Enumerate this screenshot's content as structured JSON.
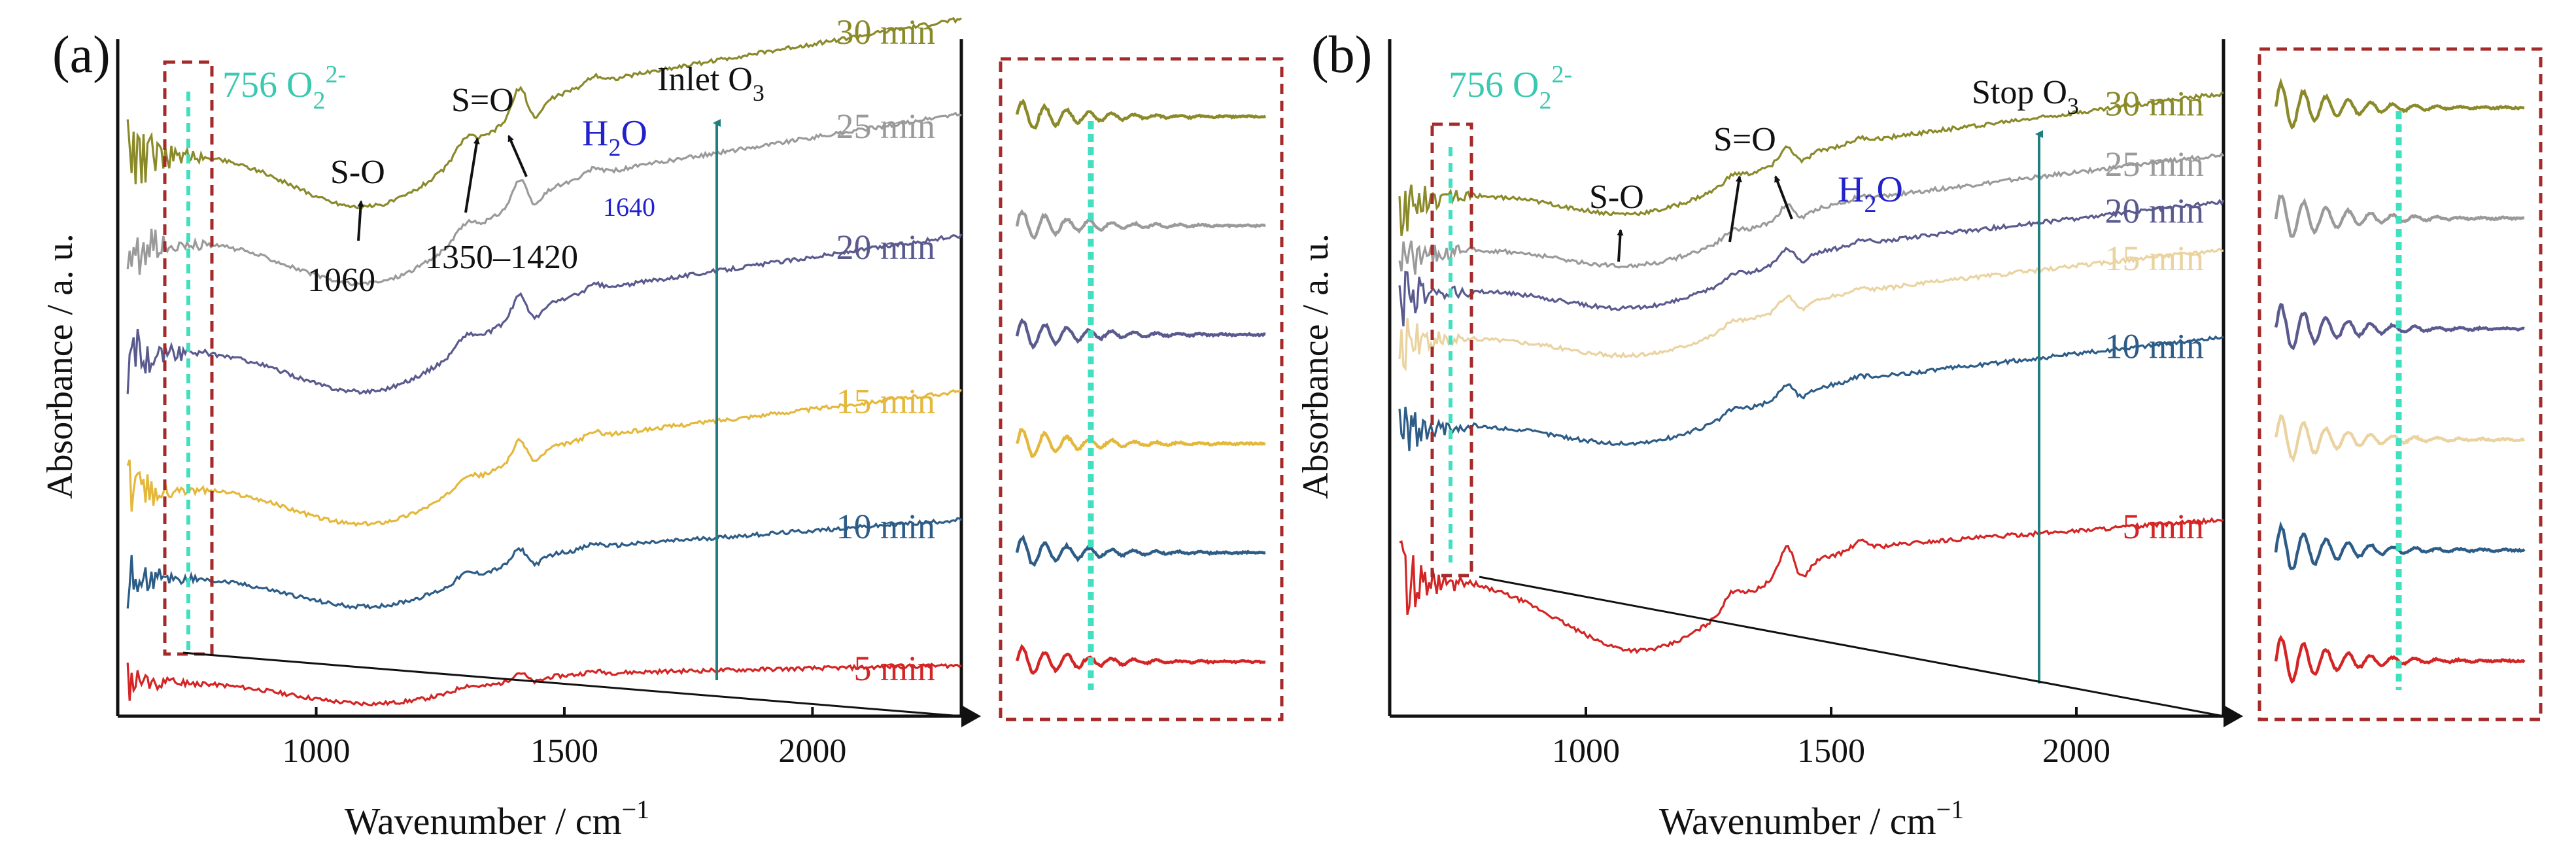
{
  "figure": {
    "x_axis_label": "Wavenumber / cm",
    "x_axis_label_exp": "−1",
    "y_axis_label": "Absorbance / a. u."
  },
  "chart_data": [
    {
      "type": "line",
      "panel_label": "(a)",
      "xlabel": "Wavenumber / cm−1",
      "ylabel": "Absorbance / a. u.",
      "xlim": [
        600,
        2300
      ],
      "ylim": [
        0,
        100
      ],
      "xticks": [
        1000,
        1500,
        2000
      ],
      "arrow_label": "Inlet O",
      "arrow_label_sub": "3",
      "series": [
        {
          "name": "5 min",
          "color": "#d42424",
          "offset": 5,
          "amp": 0.3,
          "slope": 2.5,
          "noise": 7
        },
        {
          "name": "10 min",
          "color": "#2d5d87",
          "offset": 20,
          "amp": 0.5,
          "slope": 9,
          "noise": 9
        },
        {
          "name": "15 min",
          "color": "#e4b83c",
          "offset": 33,
          "amp": 0.7,
          "slope": 15,
          "noise": 11
        },
        {
          "name": "20 min",
          "color": "#5a5a8e",
          "offset": 53,
          "amp": 0.8,
          "slope": 18,
          "noise": 11
        },
        {
          "name": "25 min",
          "color": "#9a9a9a",
          "offset": 69,
          "amp": 0.85,
          "slope": 20,
          "noise": 12
        },
        {
          "name": "30 min",
          "color": "#8a8a2a",
          "offset": 82,
          "amp": 1.0,
          "slope": 21,
          "noise": 14
        }
      ],
      "annotations": {
        "peroxide": {
          "text": "756 O",
          "sub": "2",
          "sup": "2-",
          "x": 756
        },
        "so_single": {
          "text": "S-O",
          "value": "1060"
        },
        "so_double": {
          "text": "S=O",
          "value": "1350–1420"
        },
        "water": {
          "text": "H",
          "sub": "2",
          "text2": "O",
          "value": "1640"
        }
      },
      "zoom_box": true
    },
    {
      "type": "line",
      "panel_label": "(b)",
      "xlabel": "Wavenumber / cm−1",
      "ylabel": "Absorbance / a. u.",
      "xlim": [
        600,
        2300
      ],
      "ylim": [
        0,
        100
      ],
      "xticks": [
        1000,
        1500,
        2000
      ],
      "arrow_label": "Stop O",
      "arrow_label_sub": "3",
      "series": [
        {
          "name": "5 min",
          "color": "#d42424",
          "offset": 20,
          "amp": 1.0,
          "slope": 9,
          "noise": 13
        },
        {
          "name": "10 min",
          "color": "#2d5d87",
          "offset": 42,
          "amp": 0.45,
          "slope": 14,
          "noise": 10
        },
        {
          "name": "15 min",
          "color": "#ead3a0",
          "offset": 55,
          "amp": 0.45,
          "slope": 14,
          "noise": 10
        },
        {
          "name": "20 min",
          "color": "#5a5a8e",
          "offset": 62,
          "amp": 0.45,
          "slope": 14,
          "noise": 10
        },
        {
          "name": "25 min",
          "color": "#9a9a9a",
          "offset": 68,
          "amp": 0.45,
          "slope": 15,
          "noise": 10
        },
        {
          "name": "30 min",
          "color": "#8a8a2a",
          "offset": 76,
          "amp": 0.5,
          "slope": 16,
          "noise": 12
        }
      ],
      "annotations": {
        "peroxide": {
          "text": "756 O",
          "sub": "2",
          "sup": "2-",
          "x": 756
        },
        "so_single": {
          "text": "S-O"
        },
        "so_double": {
          "text": "S=O"
        },
        "water": {
          "text": "H",
          "sub": "2",
          "text2": "O"
        }
      },
      "zoom_box": true
    }
  ]
}
